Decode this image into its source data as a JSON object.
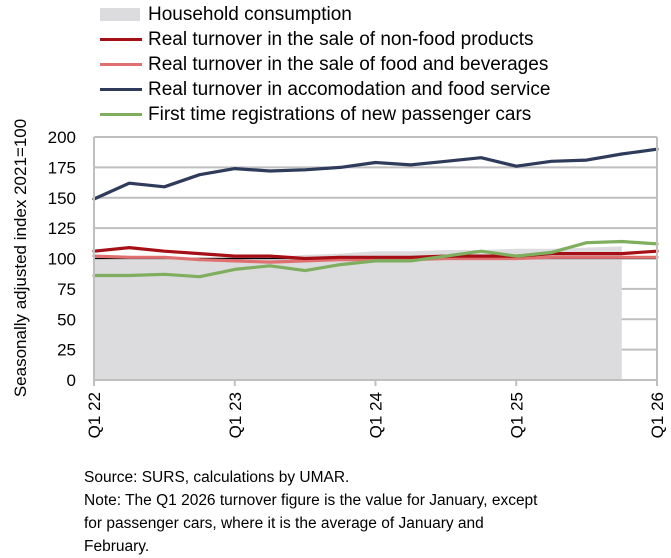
{
  "chart_data": {
    "type": "line",
    "title": "",
    "xlabel": "",
    "ylabel": "Seasonally adjusted index 2021=100",
    "ylim": [
      0,
      200
    ],
    "yticks": [
      "0",
      "25",
      "50",
      "75",
      "100",
      "125",
      "150",
      "175",
      "200"
    ],
    "ytick_values": [
      0,
      25,
      50,
      75,
      100,
      125,
      150,
      175,
      200
    ],
    "x": [
      "Q1 22",
      "Q2 22",
      "Q3 22",
      "Q4 22",
      "Q1 23",
      "Q2 23",
      "Q3 23",
      "Q4 23",
      "Q1 24",
      "Q2 24",
      "Q3 24",
      "Q4 24",
      "Q1 25",
      "Q2 25",
      "Q3 25",
      "Q4 25",
      "Q1 26"
    ],
    "xtick_labels": [
      {
        "index": 0,
        "label": "Q1 22"
      },
      {
        "index": 4,
        "label": "Q1 23"
      },
      {
        "index": 8,
        "label": "Q1 24"
      },
      {
        "index": 12,
        "label": "Q1 25"
      },
      {
        "index": 16,
        "label": "Q1 26"
      }
    ],
    "grid": true,
    "reference_line": 100,
    "legend_position": "top",
    "series": [
      {
        "name": "Household consumption",
        "kind": "area",
        "color": "#dcdcde",
        "values": [
          101,
          101,
          101,
          100,
          99,
          101,
          103,
          104,
          106,
          106,
          107,
          107,
          108,
          108,
          109,
          110,
          null
        ]
      },
      {
        "name": "Real turnover in the sale of non-food products",
        "kind": "line",
        "color": "#a50f15",
        "values": [
          106,
          109,
          106,
          104,
          102,
          102,
          100,
          101,
          101,
          101,
          102,
          102,
          102,
          104,
          104,
          104,
          106
        ]
      },
      {
        "name": "Real turnover in the sale of food and beverages",
        "kind": "line",
        "color": "#e07070",
        "values": [
          102,
          101,
          101,
          99,
          98,
          97,
          98,
          99,
          99,
          99,
          100,
          100,
          100,
          101,
          101,
          101,
          101
        ]
      },
      {
        "name": "Real turnover in accomodation and food service",
        "kind": "line",
        "color": "#2e3b5b",
        "values": [
          149,
          162,
          159,
          169,
          174,
          172,
          173,
          175,
          179,
          177,
          180,
          183,
          176,
          180,
          181,
          186,
          190
        ]
      },
      {
        "name": "First time registrations of new passenger cars",
        "kind": "line",
        "color": "#7fae5e",
        "values": [
          86,
          86,
          87,
          85,
          91,
          94,
          90,
          95,
          98,
          98,
          102,
          106,
          102,
          105,
          113,
          114,
          112
        ]
      }
    ]
  },
  "notes": {
    "source": "Source: SURS, calculations by UMAR.",
    "note_lines": [
      "Note: The Q1 2026 turnover figure is the value for January, except",
      "for passenger cars, where it is the average of January and",
      "February."
    ]
  }
}
